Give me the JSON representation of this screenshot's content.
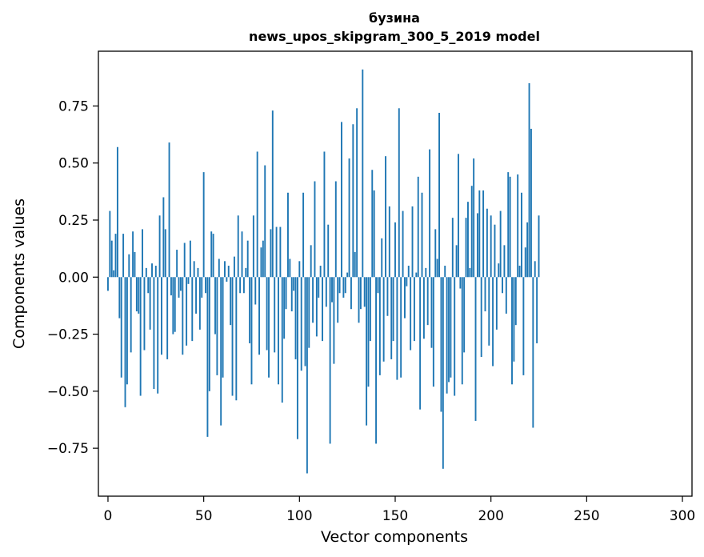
{
  "chart_data": {
    "type": "bar",
    "title": "бузина",
    "subtitle": "news_upos_skipgram_300_5_2019 model",
    "xlabel": "Vector components",
    "ylabel": "Components values",
    "xlim": [
      -5,
      305
    ],
    "ylim": [
      -0.96,
      0.99
    ],
    "xticks": [
      0,
      50,
      100,
      150,
      200,
      250,
      300
    ],
    "yticks": [
      -0.75,
      -0.5,
      -0.25,
      0.0,
      0.25,
      0.5,
      0.75
    ],
    "ytick_labels": [
      "−0.75",
      "−0.50",
      "−0.25",
      "0.00",
      "0.25",
      "0.50",
      "0.75"
    ],
    "bar_color": "#1f77b4",
    "grid": false,
    "values": [
      -0.06,
      0.29,
      0.16,
      0.03,
      0.19,
      0.57,
      -0.18,
      -0.44,
      0.19,
      -0.57,
      -0.47,
      0.1,
      -0.33,
      0.2,
      0.11,
      -0.15,
      -0.16,
      -0.52,
      0.21,
      -0.32,
      0.04,
      -0.07,
      -0.23,
      0.06,
      -0.49,
      0.05,
      -0.51,
      0.27,
      -0.34,
      0.35,
      0.21,
      -0.36,
      0.59,
      -0.08,
      -0.25,
      -0.24,
      0.12,
      -0.09,
      -0.06,
      -0.34,
      0.15,
      -0.3,
      -0.03,
      0.16,
      -0.28,
      0.07,
      -0.16,
      0.04,
      -0.23,
      -0.09,
      0.46,
      -0.07,
      -0.7,
      -0.5,
      0.2,
      0.19,
      -0.25,
      -0.43,
      0.08,
      -0.65,
      -0.44,
      0.07,
      -0.02,
      0.05,
      -0.21,
      -0.52,
      0.09,
      -0.54,
      0.27,
      -0.07,
      0.2,
      -0.07,
      0.04,
      0.16,
      -0.29,
      -0.47,
      0.27,
      -0.12,
      0.55,
      -0.34,
      0.13,
      0.16,
      0.49,
      -0.32,
      -0.44,
      0.21,
      0.73,
      -0.33,
      0.22,
      -0.47,
      0.22,
      -0.55,
      -0.27,
      -0.14,
      0.37,
      0.08,
      -0.15,
      -0.06,
      -0.36,
      -0.71,
      0.07,
      -0.41,
      0.37,
      -0.39,
      -0.86,
      -0.31,
      0.14,
      -0.2,
      0.42,
      -0.26,
      -0.09,
      0.05,
      -0.28,
      0.55,
      -0.13,
      0.23,
      -0.73,
      -0.11,
      -0.38,
      0.42,
      -0.2,
      -0.07,
      0.68,
      -0.09,
      -0.07,
      0.02,
      0.52,
      -0.14,
      0.67,
      0.11,
      0.74,
      -0.2,
      -0.14,
      0.91,
      -0.13,
      -0.65,
      -0.48,
      -0.28,
      0.47,
      0.38,
      -0.73,
      -0.07,
      -0.43,
      0.17,
      -0.37,
      0.53,
      -0.17,
      0.31,
      -0.36,
      -0.28,
      0.24,
      -0.45,
      0.74,
      -0.44,
      0.29,
      -0.18,
      -0.04,
      0.05,
      -0.32,
      0.31,
      -0.28,
      0.02,
      0.44,
      -0.58,
      0.37,
      -0.27,
      0.04,
      -0.21,
      0.56,
      -0.31,
      -0.48,
      0.21,
      0.08,
      0.72,
      -0.59,
      -0.84,
      0.05,
      -0.51,
      -0.46,
      -0.44,
      0.26,
      -0.52,
      0.14,
      0.54,
      -0.05,
      -0.47,
      -0.33,
      0.26,
      0.33,
      0.04,
      0.4,
      0.52,
      -0.63,
      0.28,
      0.38,
      -0.35,
      0.38,
      -0.15,
      0.3,
      -0.3,
      0.27,
      -0.39,
      0.23,
      -0.23,
      0.06,
      0.29,
      -0.07,
      0.14,
      -0.16,
      0.46,
      0.44,
      -0.47,
      -0.37,
      -0.21,
      0.45,
      0.05,
      0.37,
      -0.43,
      0.13,
      0.24,
      0.85,
      0.65,
      -0.66,
      0.07,
      -0.29,
      0.27
    ]
  }
}
